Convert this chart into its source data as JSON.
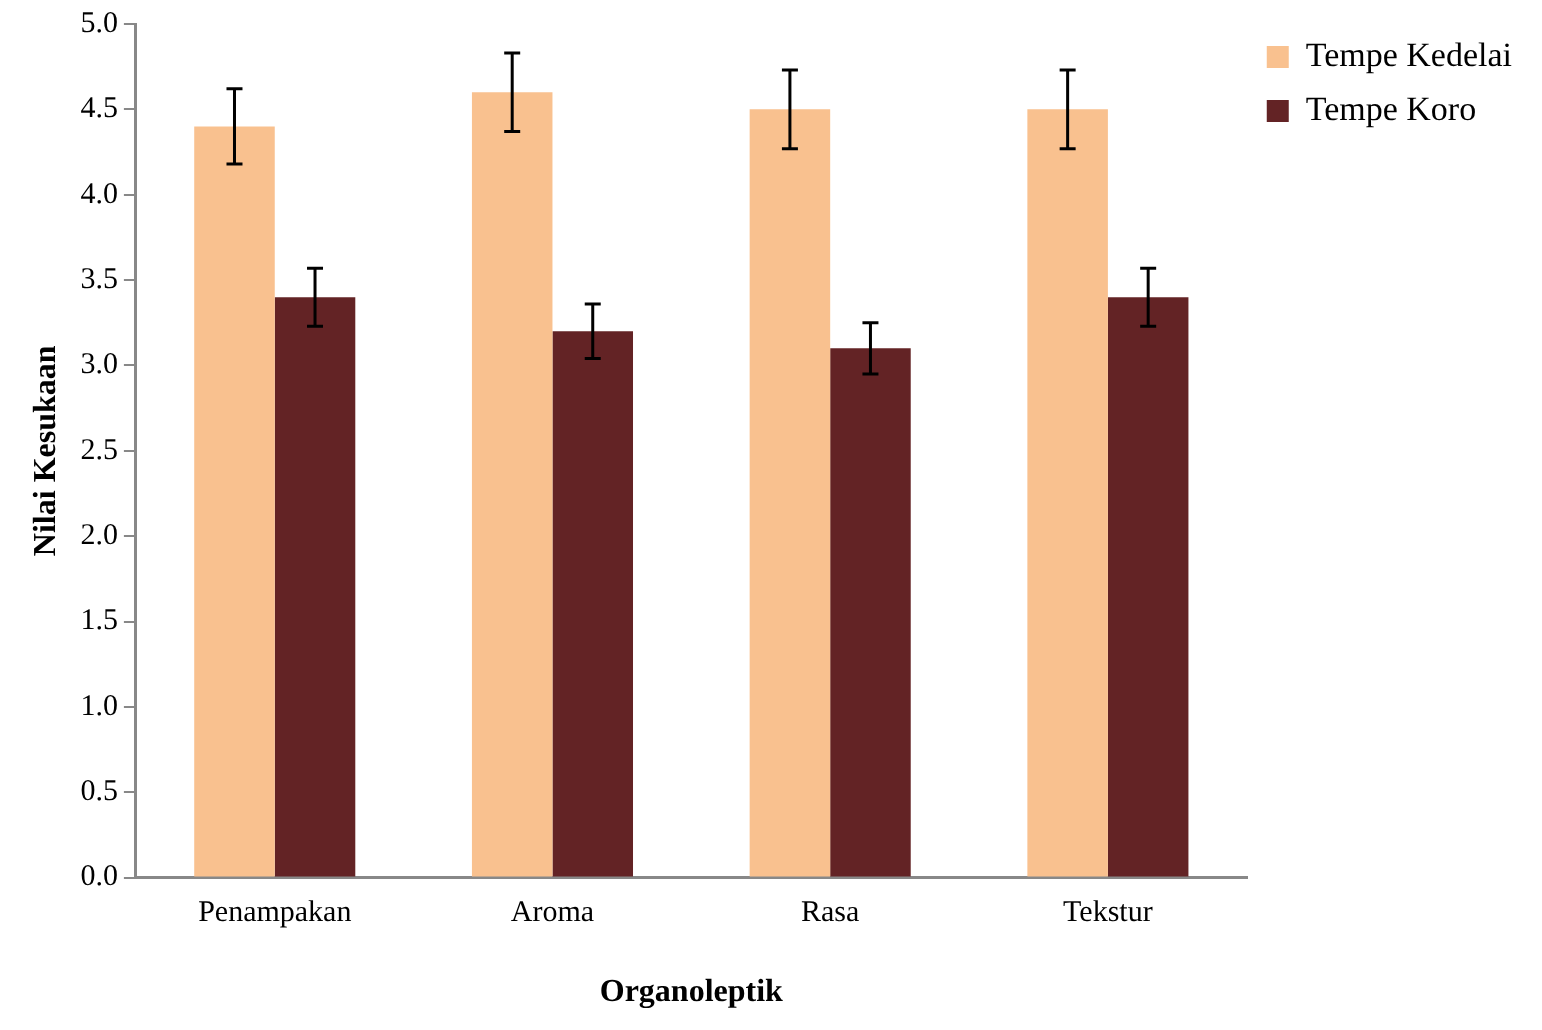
{
  "chart_data": {
    "type": "bar",
    "xlabel": "Organoleptik",
    "ylabel": "Nilai Kesukaan",
    "categories": [
      "Penampakan",
      "Aroma",
      "Rasa",
      "Tekstur"
    ],
    "series": [
      {
        "name": "Tempe Kedelai",
        "color": "#f9c18f",
        "values": [
          4.4,
          4.6,
          4.5,
          4.5
        ],
        "errors": [
          0.22,
          0.23,
          0.23,
          0.23
        ]
      },
      {
        "name": "Tempe Koro",
        "color": "#632325",
        "values": [
          3.4,
          3.2,
          3.1,
          3.4
        ],
        "errors": [
          0.17,
          0.16,
          0.15,
          0.17
        ]
      }
    ],
    "ylim": [
      0,
      5
    ],
    "yticks": [
      {
        "value": 0,
        "label": "0.0"
      },
      {
        "value": 0.5,
        "label": "0.5"
      },
      {
        "value": 1,
        "label": "1.0"
      },
      {
        "value": 1.5,
        "label": "1.5"
      },
      {
        "value": 2,
        "label": "2.0"
      },
      {
        "value": 2.5,
        "label": "2.5"
      },
      {
        "value": 3,
        "label": "3.0"
      },
      {
        "value": 3.5,
        "label": "3.5"
      },
      {
        "value": 4,
        "label": "4.0"
      },
      {
        "value": 4.5,
        "label": "4.5"
      },
      {
        "value": 5,
        "label": "5.0"
      }
    ],
    "grid": false,
    "legend": "top right"
  }
}
